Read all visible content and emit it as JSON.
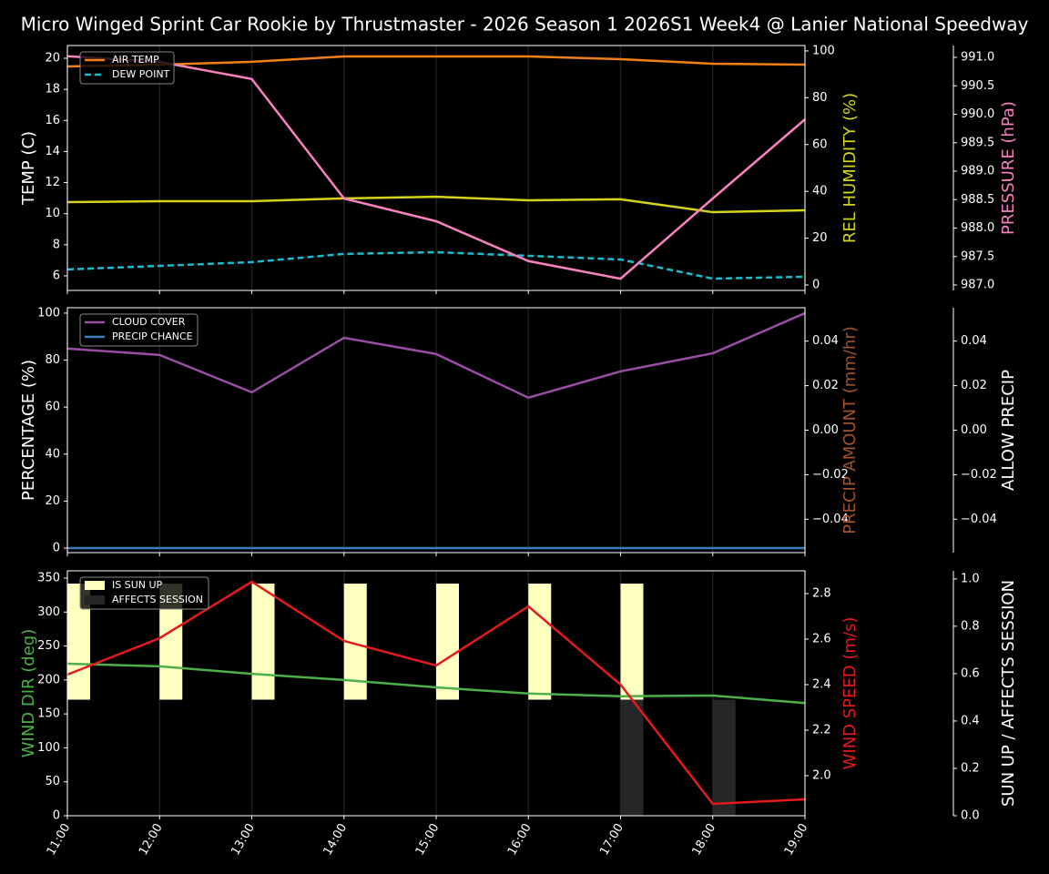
{
  "title": "Micro Winged Sprint Car Rookie by Thrustmaster - 2026 Season 1 2026S1 Week4 @ Lanier National Speedway",
  "chart_data": [
    {
      "type": "line",
      "categories": [
        "11:00",
        "12:00",
        "13:00",
        "14:00",
        "15:00",
        "16:00",
        "17:00",
        "18:00",
        "19:00"
      ],
      "ylabel": "TEMP (C)",
      "ylabel_color": "#ffffff",
      "ylim": [
        5.06,
        20.82
      ],
      "yticks": [
        6,
        8,
        10,
        12,
        14,
        16,
        18,
        20
      ],
      "y2label": "REL HUMIDITY (%)",
      "y2label_color": "#d4d41a",
      "y2lim": [
        -2.33,
        102.3
      ],
      "y2ticks": [
        0,
        20,
        40,
        60,
        80,
        100
      ],
      "y3label": "PRESSURE (hPa)",
      "y3label_color": "#f781bf",
      "y3lim": [
        986.904,
        991.208
      ],
      "y3ticks": [
        {
          "value": 987,
          "label": "987.0"
        },
        {
          "value": 987.5,
          "label": "987.5"
        },
        {
          "value": 988,
          "label": "988.0"
        },
        {
          "value": 988.5,
          "label": "988.5"
        },
        {
          "value": 989,
          "label": "989.0"
        },
        {
          "value": 989.5,
          "label": "989.5"
        },
        {
          "value": 990,
          "label": "990.0"
        },
        {
          "value": 990.5,
          "label": "990.5"
        },
        {
          "value": 991,
          "label": "991.0"
        }
      ],
      "series": [
        {
          "name": "AIR TEMP",
          "color": "#f07f16",
          "axis": "y",
          "values": [
            19.47,
            19.59,
            19.77,
            20.12,
            20.12,
            20.12,
            19.94,
            19.65,
            19.59
          ]
        },
        {
          "name": "DEW POINT",
          "color": "#17becf",
          "axis": "y",
          "dash": true,
          "values": [
            6.41,
            6.64,
            6.88,
            7.41,
            7.52,
            7.29,
            7.05,
            5.82,
            5.94
          ]
        },
        {
          "color": "#d4d41a",
          "axis": "y2",
          "values": [
            35.4,
            35.8,
            35.8,
            37.0,
            37.7,
            36.2,
            36.6,
            31.1,
            31.9
          ]
        },
        {
          "color": "#f781bf",
          "axis": "y3",
          "values": [
            991.02,
            990.92,
            990.62,
            988.52,
            988.12,
            987.42,
            987.11,
            988.52,
            989.91
          ]
        }
      ]
    },
    {
      "type": "line",
      "categories": [
        "11:00",
        "12:00",
        "13:00",
        "14:00",
        "15:00",
        "16:00",
        "17:00",
        "18:00",
        "19:00"
      ],
      "ylabel": "PERCENTAGE (%)",
      "ylabel_color": "#ffffff",
      "ylim": [
        -1.94,
        102.3
      ],
      "yticks": [
        0,
        20,
        40,
        60,
        80,
        100
      ],
      "y2label": "PRECIP AMOUNT (mm/hr)",
      "y2label_color": "#a0522d",
      "y2lim": [
        -0.055,
        0.055
      ],
      "y2ticks": [
        {
          "value": -0.04,
          "label": "−0.04"
        },
        {
          "value": -0.02,
          "label": "−0.02"
        },
        {
          "value": 0,
          "label": "0.00"
        },
        {
          "value": 0.02,
          "label": "0.02"
        },
        {
          "value": 0.04,
          "label": "0.04"
        }
      ],
      "y3label": "ALLOW PRECIP",
      "y3label_color": "#ffffff",
      "y3lim": [
        -0.055,
        0.055
      ],
      "y3ticks": [
        {
          "value": -0.04,
          "label": "−0.04"
        },
        {
          "value": -0.02,
          "label": "−0.02"
        },
        {
          "value": 0,
          "label": "0.00"
        },
        {
          "value": 0.02,
          "label": "0.02"
        },
        {
          "value": 0.04,
          "label": "0.04"
        }
      ],
      "series": [
        {
          "name": "CLOUD COVER",
          "color": "#984ea3",
          "axis": "y",
          "values": [
            84.9,
            82.2,
            66.3,
            89.5,
            82.6,
            64.0,
            75.2,
            82.9,
            100
          ]
        },
        {
          "name": "PRECIP CHANCE",
          "color": "#377eb8",
          "axis": "y",
          "values": [
            0,
            0,
            0,
            0,
            0,
            0,
            0,
            0,
            0
          ]
        }
      ]
    },
    {
      "type": "line",
      "categories": [
        "11:00",
        "12:00",
        "13:00",
        "14:00",
        "15:00",
        "16:00",
        "17:00",
        "18:00",
        "19:00"
      ],
      "ylabel": "WIND DIR (deg)",
      "ylabel_color": "#4daf4a",
      "ylim": [
        0,
        360.7
      ],
      "yticks": [
        0,
        50,
        100,
        150,
        200,
        250,
        300,
        350
      ],
      "y2label": "WIND SPEED (m/s)",
      "y2label_color": "#e41a1c",
      "y2lim": [
        1.824,
        2.9
      ],
      "y2ticks": [
        {
          "value": 2,
          "label": "2.0"
        },
        {
          "value": 2.2,
          "label": "2.2"
        },
        {
          "value": 2.4,
          "label": "2.4"
        },
        {
          "value": 2.6,
          "label": "2.6"
        },
        2.8
      ],
      "y3label": "SUN UP / AFFECTS SESSION",
      "y3label_color": "#ffffff",
      "y3lim": [
        0,
        1.034
      ],
      "y3ticks": [
        {
          "value": 0,
          "label": "0.0"
        },
        {
          "value": 0.2,
          "label": "0.2"
        },
        {
          "value": 0.4,
          "label": "0.4"
        },
        {
          "value": 0.6,
          "label": "0.6"
        },
        {
          "value": 0.8,
          "label": "0.8"
        },
        {
          "value": 1,
          "label": "1.0"
        }
      ],
      "series": [
        {
          "name": "IS SUN UP",
          "color": "#ffffc0",
          "axis": "y3",
          "kind": "bar",
          "part": "upper",
          "values": [
            1,
            1,
            1,
            1,
            1,
            1,
            1,
            0,
            0
          ]
        },
        {
          "name": "AFFECTS SESSION",
          "color": "#262626",
          "axis": "y3",
          "kind": "bar",
          "part": "lower",
          "values": [
            0,
            0,
            0,
            0,
            0,
            0,
            1,
            1,
            0
          ]
        },
        {
          "color": "#4daf4a",
          "axis": "y",
          "values": [
            224,
            220,
            209,
            200,
            189,
            180,
            176,
            177,
            166
          ]
        },
        {
          "color": "#e41a1c",
          "axis": "y2",
          "values": [
            2.444,
            2.604,
            2.852,
            2.592,
            2.484,
            2.744,
            2.4,
            1.876,
            1.896
          ]
        }
      ]
    }
  ]
}
